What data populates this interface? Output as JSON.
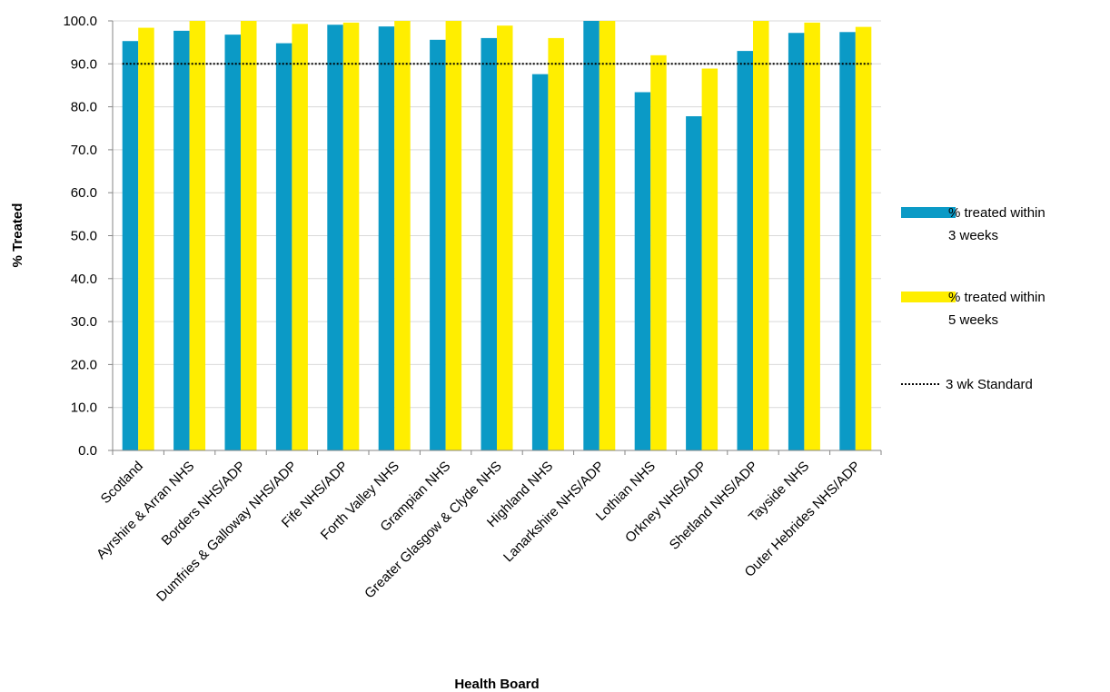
{
  "chart_data": {
    "type": "bar",
    "categories": [
      "Scotland",
      "Ayrshire & Arran NHS",
      "Borders NHS/ADP",
      "Dumfries & Galloway NHS/ADP",
      "Fife NHS/ADP",
      "Forth Valley NHS",
      "Grampian NHS",
      "Greater Glasgow & Clyde NHS",
      "Highland NHS",
      "Lanarkshire NHS/ADP",
      "Lothian NHS",
      "Orkney NHS/ADP",
      "Shetland NHS/ADP",
      "Tayside NHS",
      "Outer Hebrides NHS/ADP"
    ],
    "series": [
      {
        "name": "% treated within 3 weeks",
        "color": "#0b9ac6",
        "values": [
          95.3,
          97.7,
          96.8,
          94.8,
          99.1,
          98.7,
          95.6,
          96.0,
          87.6,
          100.0,
          83.4,
          77.8,
          93.0,
          97.2,
          97.4
        ]
      },
      {
        "name": "% treated within 5 weeks",
        "color": "#ffee00",
        "values": [
          98.4,
          100.0,
          100.0,
          99.3,
          99.6,
          100.0,
          100.0,
          98.9,
          96.0,
          100.0,
          92.0,
          88.9,
          100.0,
          99.6,
          98.6
        ]
      }
    ],
    "reference_line": {
      "name": "3 wk Standard",
      "value": 90.0,
      "style": "dotted",
      "color": "#000000"
    },
    "title": "",
    "xlabel": "Health Board",
    "ylabel": "% Treated",
    "ylim": [
      0,
      100
    ],
    "yticks": [
      "0.0",
      "10.0",
      "20.0",
      "30.0",
      "40.0",
      "50.0",
      "60.0",
      "70.0",
      "80.0",
      "90.0",
      "100.0"
    ],
    "grid": true,
    "legend_position": "right",
    "legend": [
      {
        "lines": [
          "% treated within",
          "3 weeks"
        ]
      },
      {
        "lines": [
          "% treated within",
          "5 weeks"
        ]
      },
      {
        "lines": [
          "3 wk Standard"
        ]
      }
    ]
  }
}
